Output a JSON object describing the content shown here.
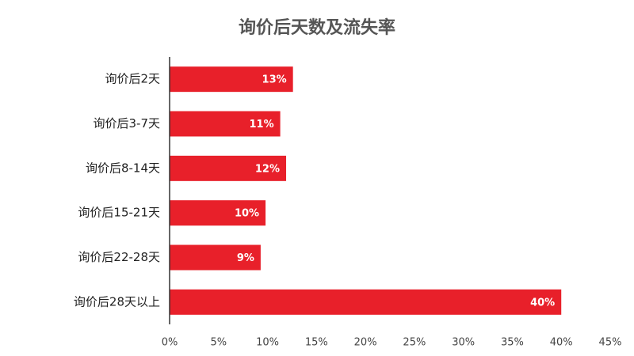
{
  "chart_data": {
    "type": "hbar",
    "title": "询价后天数及流失率",
    "categories": [
      "询价后2天",
      "询价后3-7天",
      "询价后8-14天",
      "询价后15-21天",
      "询价后22-28天",
      "询价后28天以上"
    ],
    "values": [
      12.6,
      11.3,
      11.9,
      9.8,
      9.3,
      40.0
    ],
    "value_labels": [
      "13%",
      "11%",
      "12%",
      "10%",
      "9%",
      "40%"
    ],
    "color": "#e8202a",
    "xlim": [
      0,
      45
    ],
    "xticks": [
      {
        "value": 0,
        "label": "0%"
      },
      {
        "value": 5,
        "label": "5%"
      },
      {
        "value": 10,
        "label": "10%"
      },
      {
        "value": 15,
        "label": "15%"
      },
      {
        "value": 20,
        "label": "20%"
      },
      {
        "value": 25,
        "label": "25%"
      },
      {
        "value": 30,
        "label": "30%"
      },
      {
        "value": 35,
        "label": "35%"
      },
      {
        "value": 40,
        "label": "40%"
      },
      {
        "value": 45,
        "label": "45%"
      }
    ]
  }
}
